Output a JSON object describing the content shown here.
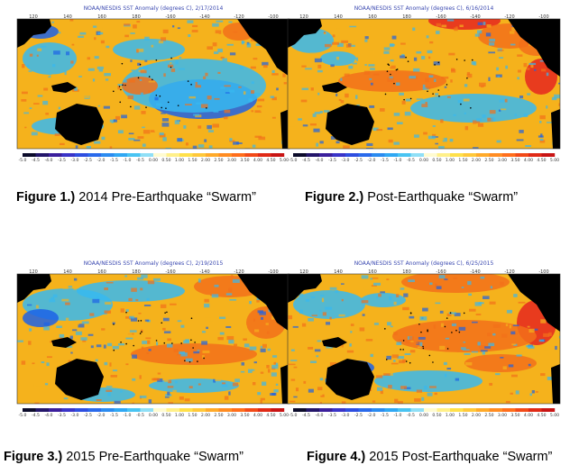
{
  "figures": [
    {
      "map_title": "NOAA/NESDIS SST Anomaly (degrees C), 2/17/2014",
      "caption_num": "Figure 1.)",
      "caption_text": " 2014 Pre-Earthquake “Swarm”",
      "palette": {
        "base": "#f5b21c",
        "warm": "#f2701a",
        "hot": "#e5261f",
        "cool": "#37b8f0",
        "cold": "#1d62e6",
        "land": "#000000"
      },
      "longitude_labels": [
        "120",
        "140",
        "160",
        "180",
        "-160",
        "-140",
        "-120",
        "-100"
      ]
    },
    {
      "map_title": "NOAA/NESDIS SST Anomaly (degrees C), 6/16/2014",
      "caption_num": "Figure 2.)",
      "caption_text": " Post-Earthquake “Swarm”",
      "palette": {
        "base": "#f5b21c",
        "warm": "#f2701a",
        "hot": "#e5261f",
        "cool": "#37b8f0",
        "cold": "#1d62e6",
        "land": "#000000"
      },
      "longitude_labels": [
        "120",
        "140",
        "160",
        "180",
        "-160",
        "-140",
        "-120",
        "-100"
      ]
    },
    {
      "map_title": "NOAA/NESDIS SST Anomaly (degrees C), 2/19/2015",
      "caption_num": "Figure 3.)",
      "caption_text": " 2015 Pre-Earthquake “Swarm”",
      "palette": {
        "base": "#f5b21c",
        "warm": "#f2701a",
        "hot": "#e5261f",
        "cool": "#37b8f0",
        "cold": "#1d62e6",
        "land": "#000000"
      },
      "longitude_labels": [
        "120",
        "140",
        "160",
        "180",
        "-160",
        "-140",
        "-120",
        "-100"
      ]
    },
    {
      "map_title": "NOAA/NESDIS SST Anomaly (degrees C), 6/25/2015",
      "caption_num": "Figure 4.)",
      "caption_text": " 2015 Post-Earthquake “Swarm”",
      "palette": {
        "base": "#f5b21c",
        "warm": "#f2701a",
        "hot": "#e5261f",
        "cool": "#37b8f0",
        "cold": "#1d62e6",
        "land": "#000000"
      },
      "longitude_labels": [
        "120",
        "140",
        "160",
        "180",
        "-160",
        "-140",
        "-120",
        "-100"
      ]
    }
  ],
  "colorbar": {
    "ticks": [
      "-5.0",
      "-4.5",
      "-4.0",
      "-3.5",
      "-3.0",
      "-2.5",
      "-2.0",
      "-1.5",
      "-1.0",
      "-0.5",
      "0.00",
      "0.50",
      "1.00",
      "1.50",
      "2.00",
      "2.50",
      "3.00",
      "3.50",
      "4.00",
      "4.50",
      "5.00"
    ],
    "colors": [
      "#0b0b2a",
      "#23166a",
      "#3b1f9c",
      "#3a34c8",
      "#2e4ee0",
      "#2a6aeb",
      "#2b8bf0",
      "#30a8f3",
      "#49c4f2",
      "#8fdff6",
      "#fffbd0",
      "#fff08a",
      "#ffe04a",
      "#ffc83a",
      "#ffaa2a",
      "#ff8c22",
      "#ff6e1c",
      "#f24a18",
      "#e02a16",
      "#c81414"
    ]
  }
}
